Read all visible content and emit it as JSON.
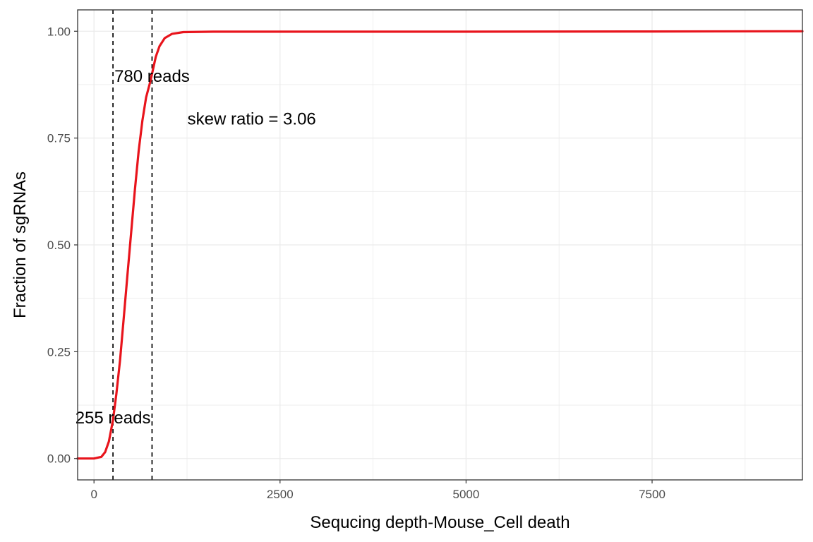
{
  "chart_data": {
    "type": "line",
    "xlabel": "Sequcing depth-Mouse_Cell death",
    "ylabel": "Fraction of sgRNAs",
    "xlim": [
      -220,
      9520
    ],
    "ylim": [
      -0.05,
      1.05
    ],
    "x_ticks": [
      0,
      2500,
      5000,
      7500
    ],
    "x_tick_labels": [
      "0",
      "2500",
      "5000",
      "7500"
    ],
    "y_ticks": [
      0,
      0.25,
      0.5,
      0.75,
      1.0
    ],
    "y_tick_labels": [
      "0.00",
      "0.25",
      "0.50",
      "0.75",
      "1.00"
    ],
    "grid": true,
    "series": [
      {
        "color": "#e8141c",
        "x": [
          -220,
          0,
          100,
          150,
          200,
          255,
          300,
          350,
          400,
          450,
          500,
          550,
          600,
          650,
          700,
          750,
          780,
          830,
          880,
          950,
          1050,
          1200,
          1600,
          3000,
          5000,
          7500,
          9200,
          9520
        ],
        "y": [
          0,
          0,
          0.004,
          0.015,
          0.04,
          0.09,
          0.15,
          0.23,
          0.33,
          0.43,
          0.53,
          0.63,
          0.72,
          0.79,
          0.845,
          0.878,
          0.9,
          0.94,
          0.965,
          0.984,
          0.994,
          0.998,
          0.999,
          0.999,
          0.999,
          0.9995,
          1.0,
          1.0
        ]
      }
    ],
    "vlines": [
      {
        "x": 255,
        "style": "dashed",
        "color": "#000000"
      },
      {
        "x": 780,
        "style": "dashed",
        "color": "#000000"
      }
    ],
    "annotations": [
      {
        "text": "255 reads",
        "x": 255,
        "y": 0.095
      },
      {
        "text": "780 reads",
        "x": 780,
        "y": 0.895
      },
      {
        "text": "skew ratio = 3.06",
        "x": 2120,
        "y": 0.795
      }
    ]
  }
}
